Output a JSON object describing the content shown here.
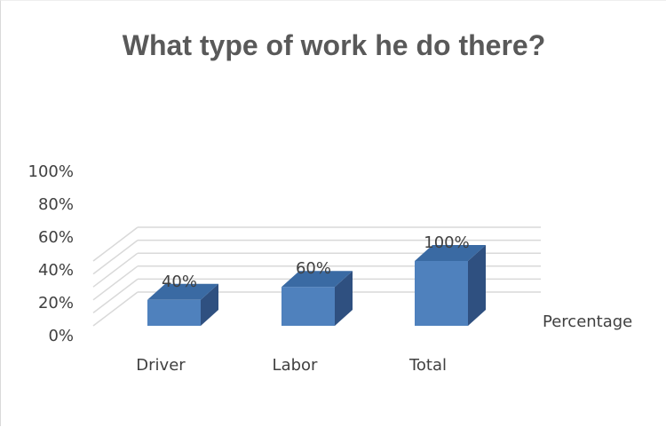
{
  "chart_data": {
    "type": "bar",
    "title": "What type of work he do there?",
    "categories": [
      "Driver",
      "Labor",
      "Total"
    ],
    "series": [
      {
        "name": "Percentage",
        "values": [
          40,
          60,
          100
        ]
      }
    ],
    "data_labels": [
      "40%",
      "60%",
      "100%"
    ],
    "y_ticks": [
      "0%",
      "20%",
      "40%",
      "60%",
      "80%",
      "100%"
    ],
    "ylim": [
      0,
      100
    ],
    "legend_position": "right",
    "grid": true,
    "style": "3d-column",
    "colors": {
      "bar_front": "#4f81bd",
      "bar_side": "#2f5080",
      "bar_top": "#3a6aa3"
    }
  }
}
